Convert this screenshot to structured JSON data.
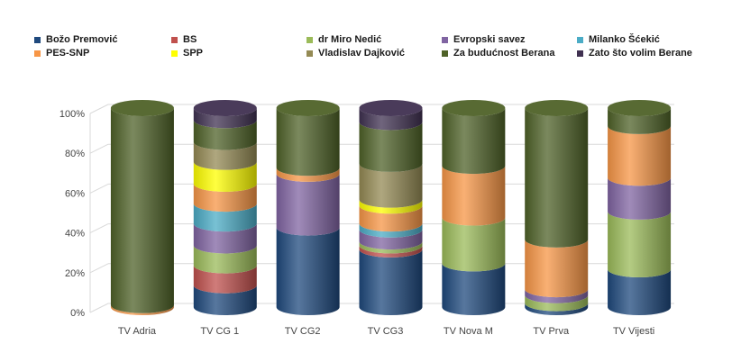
{
  "chart_data": {
    "type": "bar",
    "stacked": true,
    "style": "3d-cylinder",
    "title": "",
    "xlabel": "",
    "ylabel": "",
    "ylim": [
      0,
      100
    ],
    "yticks": [
      "0%",
      "20%",
      "40%",
      "60%",
      "80%",
      "100%"
    ],
    "grid": true,
    "legend_position": "top",
    "categories": [
      "TV Adria",
      "TV CG 1",
      "TV CG2",
      "TV CG3",
      "TV Nova M",
      "TV Prva",
      "TV Vijesti"
    ],
    "series": [
      {
        "name": "Božo Premović",
        "color": "#1f497d",
        "values": [
          0,
          11,
          40,
          29,
          22,
          2,
          19
        ]
      },
      {
        "name": "BS",
        "color": "#c0504d",
        "values": [
          0,
          10,
          0,
          2,
          0,
          0,
          0
        ]
      },
      {
        "name": "dr Miro Nedić",
        "color": "#9bbb59",
        "values": [
          0,
          10,
          0,
          2,
          23,
          4,
          29
        ]
      },
      {
        "name": "Evropski savez",
        "color": "#8064a2",
        "values": [
          0,
          11,
          27,
          6,
          0,
          3,
          17
        ]
      },
      {
        "name": "Milanko Šćekić",
        "color": "#4bacc6",
        "values": [
          0,
          10,
          0,
          3,
          0,
          0,
          0
        ]
      },
      {
        "name": "PES-SNP",
        "color": "#f79646",
        "values": [
          1,
          10,
          3,
          9,
          26,
          25,
          26
        ]
      },
      {
        "name": "SPP",
        "color": "#ffff00",
        "values": [
          0,
          11,
          0,
          3,
          0,
          0,
          0
        ]
      },
      {
        "name": "Vladislav Dajković",
        "color": "#948a54",
        "values": [
          0,
          10,
          0,
          18,
          0,
          0,
          0
        ]
      },
      {
        "name": "Za budućnost Berana",
        "color": "#4f6228",
        "values": [
          99,
          11,
          30,
          21,
          29,
          66,
          9
        ]
      },
      {
        "name": "Zato što volim Berane",
        "color": "#403151",
        "values": [
          0,
          6,
          0,
          7,
          0,
          0,
          0
        ]
      }
    ]
  }
}
